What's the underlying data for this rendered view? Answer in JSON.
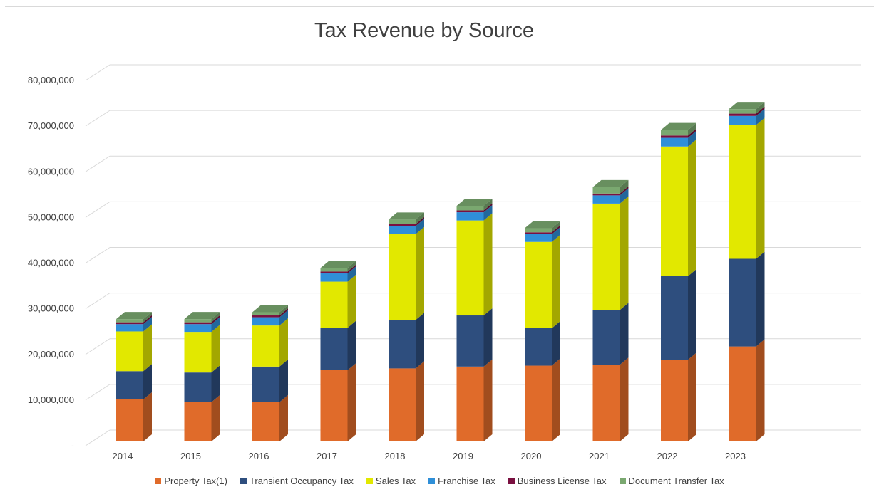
{
  "chart_data": {
    "type": "bar",
    "stacked": true,
    "three_d": true,
    "title": "Tax Revenue by Source",
    "xlabel": "",
    "ylabel": "",
    "ylim": [
      0,
      80000000
    ],
    "y_ticks": [
      0,
      10000000,
      20000000,
      30000000,
      40000000,
      50000000,
      60000000,
      70000000,
      80000000
    ],
    "y_tick_labels": [
      "-",
      "10,000,000",
      "20,000,000",
      "30,000,000",
      "40,000,000",
      "50,000,000",
      "60,000,000",
      "70,000,000",
      "80,000,000"
    ],
    "grid": true,
    "legend_position": "bottom",
    "categories": [
      "2014",
      "2015",
      "2016",
      "2017",
      "2018",
      "2019",
      "2020",
      "2021",
      "2022",
      "2023"
    ],
    "series": [
      {
        "name": "Property Tax(1)",
        "color": "#e06b2a",
        "values": [
          9200000,
          8600000,
          8600000,
          15600000,
          16000000,
          16400000,
          16600000,
          16800000,
          17900000,
          20800000
        ]
      },
      {
        "name": "Transient Occupancy Tax",
        "color": "#2e4e7e",
        "values": [
          6200000,
          6500000,
          7800000,
          9300000,
          10600000,
          11200000,
          8200000,
          12000000,
          18300000,
          19200000
        ]
      },
      {
        "name": "Sales Tax",
        "color": "#e2e800",
        "values": [
          8700000,
          8900000,
          9000000,
          10100000,
          18800000,
          20800000,
          18900000,
          23300000,
          28400000,
          29300000
        ]
      },
      {
        "name": "Franchise Tax",
        "color": "#2f8fd8",
        "values": [
          1600000,
          1700000,
          1800000,
          1800000,
          1800000,
          1800000,
          1700000,
          1800000,
          1900000,
          2000000
        ]
      },
      {
        "name": "Business License Tax",
        "color": "#7a1040",
        "values": [
          400000,
          400000,
          400000,
          400000,
          400000,
          400000,
          400000,
          400000,
          500000,
          500000
        ]
      },
      {
        "name": "Document Transfer Tax",
        "color": "#7aa870",
        "values": [
          700000,
          700000,
          700000,
          800000,
          1000000,
          1000000,
          900000,
          1400000,
          1200000,
          1000000
        ]
      }
    ]
  }
}
